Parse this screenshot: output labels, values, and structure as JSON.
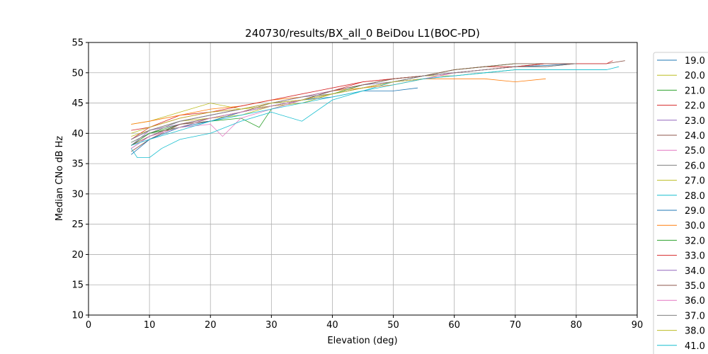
{
  "chart_data": {
    "type": "line",
    "title": "240730/results/BX_all_0 BeiDou L1(BOC-PD)",
    "xlabel": "Elevation (deg)",
    "ylabel": "Median CNo dB Hz",
    "xlim": [
      0,
      90
    ],
    "ylim": [
      10,
      55
    ],
    "xticks": [
      "0",
      "10",
      "20",
      "30",
      "40",
      "50",
      "60",
      "70",
      "80",
      "90"
    ],
    "yticks": [
      "10",
      "15",
      "20",
      "25",
      "30",
      "35",
      "40",
      "45",
      "50",
      "55"
    ],
    "grid": true,
    "legend_position": "right",
    "series": [
      {
        "name": "19.0",
        "color": "#1f77b4",
        "x": [
          7,
          10,
          15,
          20,
          25,
          30,
          35,
          40,
          45,
          50,
          55,
          60,
          65,
          70,
          75,
          80
        ],
        "y": [
          37.5,
          39.5,
          41.5,
          42.5,
          43.5,
          44.5,
          45.5,
          46.5,
          47.5,
          48.5,
          49.5,
          50.0,
          50.5,
          51.0,
          51.2,
          51.5
        ]
      },
      {
        "name": "20.0",
        "color": "#bcbd22",
        "x": [
          7,
          10,
          15,
          20,
          25,
          30,
          35,
          40,
          45,
          50,
          55,
          60,
          65,
          70,
          75
        ],
        "y": [
          39.5,
          40.5,
          42.0,
          42.5,
          43.0,
          44.5,
          45.0,
          46.5,
          47.5,
          48.5,
          49.5,
          49.5,
          50.0,
          50.5,
          50.5
        ]
      },
      {
        "name": "21.0",
        "color": "#2ca02c",
        "x": [
          7,
          10,
          15,
          20,
          25,
          28,
          30,
          35,
          40,
          45,
          50,
          55,
          60,
          65,
          70,
          75
        ],
        "y": [
          38.5,
          40.0,
          41.5,
          42.0,
          42.5,
          41.0,
          44.0,
          45.5,
          47.0,
          48.0,
          49.0,
          49.5,
          50.5,
          51.0,
          51.5,
          51.5
        ]
      },
      {
        "name": "22.0",
        "color": "#d62728",
        "x": [
          7,
          10,
          15,
          20,
          25,
          30,
          35,
          40,
          45,
          50,
          55,
          60,
          65,
          70,
          75,
          80,
          85
        ],
        "y": [
          39.0,
          41.0,
          43.0,
          43.5,
          44.0,
          45.0,
          46.0,
          47.0,
          48.5,
          49.0,
          49.5,
          50.5,
          51.0,
          51.0,
          51.5,
          51.5,
          51.5
        ]
      },
      {
        "name": "23.0",
        "color": "#9467bd",
        "x": [
          7,
          10,
          15,
          20,
          25,
          30,
          35,
          40,
          45,
          50,
          55,
          60,
          65,
          70
        ],
        "y": [
          38.0,
          40.5,
          41.5,
          42.5,
          43.5,
          44.5,
          45.5,
          46.5,
          47.5,
          48.5,
          49.0,
          50.0,
          50.5,
          51.0
        ]
      },
      {
        "name": "24.0",
        "color": "#8c564b",
        "x": [
          7,
          10,
          15,
          20,
          25,
          30,
          35,
          40,
          45,
          50,
          55,
          60,
          65,
          70,
          75,
          80,
          85,
          88
        ],
        "y": [
          37.0,
          39.0,
          41.5,
          42.0,
          43.5,
          44.5,
          45.5,
          46.5,
          47.5,
          48.5,
          49.5,
          50.0,
          50.5,
          51.0,
          51.0,
          51.5,
          51.5,
          52.0
        ]
      },
      {
        "name": "25.0",
        "color": "#e377c2",
        "x": [
          7,
          10,
          15,
          20,
          22,
          25,
          30,
          35,
          40,
          45,
          50,
          55,
          60
        ],
        "y": [
          38.0,
          40.0,
          41.0,
          41.5,
          39.5,
          42.5,
          44.0,
          45.5,
          46.5,
          47.5,
          48.5,
          49.0,
          49.5
        ]
      },
      {
        "name": "26.0",
        "color": "#7f7f7f",
        "x": [
          7,
          10,
          15,
          20,
          25,
          30,
          35,
          40,
          45,
          50,
          55,
          60,
          65,
          70,
          75,
          80,
          85
        ],
        "y": [
          38.5,
          40.0,
          42.0,
          43.0,
          44.0,
          45.0,
          46.0,
          47.0,
          48.0,
          49.0,
          49.5,
          50.0,
          50.5,
          51.0,
          51.5,
          51.5,
          51.5
        ]
      },
      {
        "name": "27.0",
        "color": "#bcbd22",
        "x": [
          7,
          10,
          15,
          20,
          25,
          30,
          35,
          40,
          45,
          50
        ],
        "y": [
          41.5,
          42.0,
          43.5,
          45.0,
          44.0,
          44.5,
          45.5,
          46.5,
          47.5,
          48.5
        ]
      },
      {
        "name": "28.0",
        "color": "#17becf",
        "x": [
          7,
          8,
          10,
          12,
          15,
          20,
          25,
          30,
          35,
          40,
          45,
          50,
          55,
          60,
          65,
          70,
          75,
          80,
          85,
          87
        ],
        "y": [
          37.5,
          36.0,
          36.0,
          37.5,
          39.0,
          40.0,
          42.0,
          43.5,
          42.0,
          45.5,
          47.0,
          48.5,
          49.0,
          49.5,
          50.0,
          50.5,
          50.5,
          50.5,
          50.5,
          51.0
        ]
      },
      {
        "name": "29.0",
        "color": "#1f77b4",
        "x": [
          7,
          10,
          15,
          20,
          25,
          30,
          35,
          40,
          45,
          50,
          54
        ],
        "y": [
          36.5,
          39.0,
          41.0,
          42.0,
          43.5,
          44.5,
          45.5,
          46.0,
          47.0,
          47.0,
          47.5
        ]
      },
      {
        "name": "30.0",
        "color": "#ff7f0e",
        "x": [
          7,
          10,
          15,
          20,
          25,
          30,
          35,
          40,
          45,
          50,
          55,
          60,
          65,
          70,
          75
        ],
        "y": [
          41.5,
          42.0,
          43.0,
          44.0,
          44.5,
          45.5,
          46.0,
          47.0,
          47.5,
          48.0,
          49.0,
          49.0,
          49.0,
          48.5,
          49.0
        ]
      },
      {
        "name": "32.0",
        "color": "#2ca02c",
        "x": [
          7,
          10,
          15,
          20,
          25,
          30,
          35,
          40,
          45,
          50,
          55,
          60,
          65,
          70
        ],
        "y": [
          38.0,
          40.0,
          41.0,
          42.5,
          43.5,
          44.5,
          45.5,
          46.5,
          48.0,
          48.5,
          49.5,
          50.5,
          51.0,
          51.5
        ]
      },
      {
        "name": "33.0",
        "color": "#d62728",
        "x": [
          7,
          10,
          15,
          20,
          25,
          30,
          35,
          40,
          45,
          50,
          55,
          60,
          65,
          70,
          75,
          80,
          85,
          86
        ],
        "y": [
          40.5,
          41.0,
          42.5,
          43.5,
          44.5,
          45.5,
          46.5,
          47.5,
          48.5,
          49.0,
          49.5,
          50.0,
          50.5,
          51.0,
          51.5,
          51.5,
          51.5,
          52.0
        ]
      },
      {
        "name": "34.0",
        "color": "#9467bd",
        "x": [
          7,
          10,
          15,
          20,
          25,
          30,
          35,
          40,
          45,
          50,
          55,
          60
        ],
        "y": [
          39.0,
          40.5,
          42.0,
          43.0,
          44.0,
          45.0,
          46.0,
          47.0,
          48.0,
          48.5,
          49.5,
          50.0
        ]
      },
      {
        "name": "35.0",
        "color": "#8c564b",
        "x": [
          7,
          10,
          15,
          20,
          25,
          30,
          35,
          40,
          45,
          50,
          55,
          60,
          65,
          70,
          75,
          80
        ],
        "y": [
          38.0,
          39.5,
          41.5,
          42.5,
          43.5,
          45.0,
          45.5,
          47.0,
          48.0,
          49.0,
          49.5,
          50.5,
          51.0,
          51.5,
          51.5,
          51.5
        ]
      },
      {
        "name": "36.0",
        "color": "#e377c2",
        "x": [
          7,
          10,
          15,
          20,
          25,
          30,
          35,
          40,
          45,
          50,
          55,
          60,
          65
        ],
        "y": [
          37.5,
          39.5,
          41.0,
          42.5,
          43.5,
          44.5,
          45.5,
          46.5,
          47.5,
          48.5,
          49.0,
          50.0,
          50.5
        ]
      },
      {
        "name": "37.0",
        "color": "#7f7f7f",
        "x": [
          7,
          10,
          15,
          20,
          25,
          30,
          35,
          40,
          45,
          50,
          55,
          60,
          65,
          70,
          75,
          80
        ],
        "y": [
          39.0,
          40.5,
          42.0,
          43.0,
          44.0,
          45.0,
          46.0,
          46.5,
          47.5,
          48.5,
          49.5,
          50.0,
          50.5,
          51.0,
          51.0,
          51.5
        ]
      },
      {
        "name": "38.0",
        "color": "#bcbd22",
        "x": [
          7,
          10,
          15,
          20,
          25,
          30,
          35,
          40,
          45,
          50,
          55
        ],
        "y": [
          40.0,
          41.0,
          42.5,
          43.5,
          44.0,
          45.0,
          45.5,
          46.5,
          47.5,
          48.5,
          49.0
        ]
      },
      {
        "name": "41.0",
        "color": "#17becf",
        "x": [
          7,
          10,
          15,
          20,
          25,
          30,
          35,
          40,
          45,
          50,
          55,
          60,
          65,
          70,
          75,
          80,
          85
        ],
        "y": [
          38.0,
          39.0,
          40.5,
          42.0,
          43.0,
          44.0,
          45.0,
          46.0,
          47.0,
          48.0,
          49.0,
          49.5,
          50.0,
          50.5,
          50.5,
          50.5,
          50.5
        ]
      }
    ]
  }
}
